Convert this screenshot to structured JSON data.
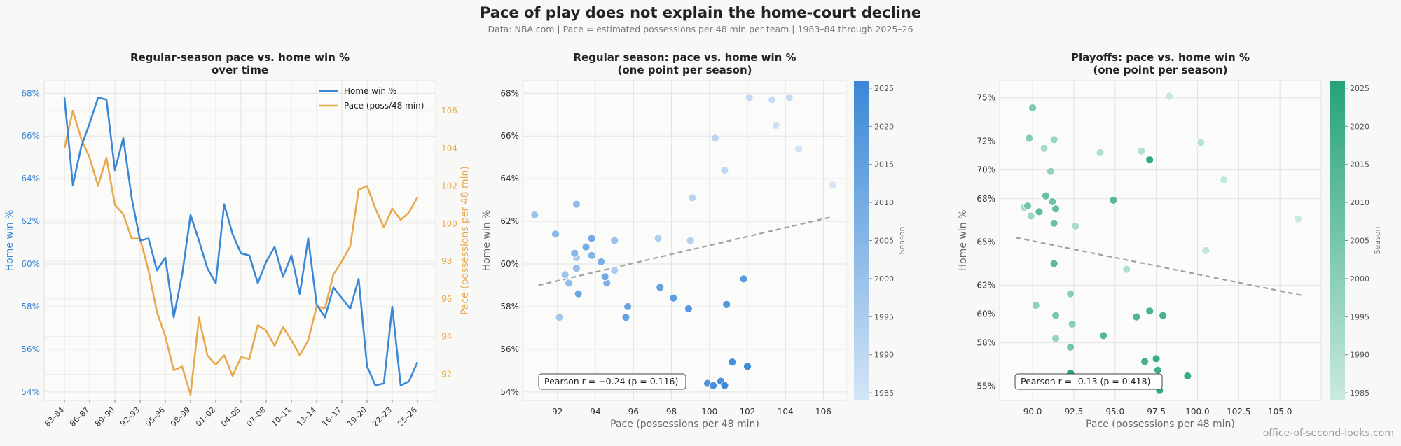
{
  "header": {
    "title": "Pace of play does not explain the home-court decline",
    "subtitle": "Data: NBA.com  |  Pace = estimated possessions per 48 min per team  |  1983–84 through 2025–26",
    "credit": "office-of-second-looks.com"
  },
  "colors": {
    "home": "#3a87d6",
    "pace": "#e8a94e",
    "playoff": "#25a27a",
    "trend": "#a0a0a0"
  },
  "chart_data": [
    {
      "type": "line",
      "title": "Regular-season pace vs. home win %\nover time",
      "ylabel": "Home win %",
      "y2label": "Pace (possessions per 48 min)",
      "ylim": [
        53.6,
        68.6
      ],
      "y2lim": [
        90.6,
        107.6
      ],
      "yticks": [
        "54%",
        "56%",
        "58%",
        "60%",
        "62%",
        "64%",
        "66%",
        "68%"
      ],
      "y2ticks": [
        92,
        94,
        96,
        98,
        100,
        102,
        104,
        106
      ],
      "legend_position": "top-right",
      "grid": true,
      "xticks": [
        "83–84",
        "86–87",
        "89–90",
        "92–93",
        "95–96",
        "98–99",
        "01–02",
        "04–05",
        "07–08",
        "10–11",
        "13–14",
        "16–17",
        "19–20",
        "22–23",
        "25–26"
      ],
      "x": [
        "83–84",
        "84–85",
        "85–86",
        "86–87",
        "87–88",
        "88–89",
        "89–90",
        "90–91",
        "91–92",
        "92–93",
        "93–94",
        "94–95",
        "95–96",
        "96–97",
        "97–98",
        "98–99",
        "99–00",
        "00–01",
        "01–02",
        "02–03",
        "03–04",
        "04–05",
        "05–06",
        "06–07",
        "07–08",
        "08–09",
        "09–10",
        "10–11",
        "11–12",
        "12–13",
        "13–14",
        "14–15",
        "15–16",
        "16–17",
        "17–18",
        "18–19",
        "19–20",
        "20–21",
        "21–22",
        "22–23",
        "23–24",
        "24–25",
        "25–26"
      ],
      "series": [
        {
          "name": "Home win %",
          "axis": "left",
          "values": [
            67.8,
            63.7,
            65.5,
            66.6,
            67.8,
            67.7,
            64.4,
            65.9,
            63.1,
            61.1,
            61.2,
            59.7,
            60.3,
            57.5,
            59.5,
            62.3,
            61.1,
            59.8,
            59.1,
            62.8,
            61.4,
            60.5,
            60.4,
            59.1,
            60.1,
            60.8,
            59.4,
            60.4,
            58.6,
            61.2,
            58.1,
            57.5,
            58.9,
            58.4,
            57.9,
            59.3,
            55.2,
            54.3,
            54.4,
            58.0,
            54.3,
            54.5,
            55.4
          ]
        },
        {
          "name": "Pace (poss/48 min)",
          "axis": "right",
          "values": [
            104.0,
            106.0,
            104.5,
            103.5,
            102.0,
            103.5,
            101.0,
            100.5,
            99.2,
            99.2,
            97.5,
            95.3,
            94.0,
            92.2,
            92.4,
            90.9,
            95.0,
            93.0,
            92.5,
            93.0,
            91.9,
            92.9,
            92.8,
            94.6,
            94.3,
            93.5,
            94.5,
            93.8,
            93.0,
            93.8,
            95.6,
            95.5,
            97.3,
            98.0,
            98.8,
            101.8,
            102.0,
            100.8,
            99.8,
            100.8,
            100.2,
            100.6,
            101.4
          ]
        }
      ]
    },
    {
      "type": "scatter",
      "title": "Regular season: pace vs. home win %\n(one point per season)",
      "xlabel": "Pace (possessions per 48 min)",
      "ylabel": "Home win %",
      "xlim": [
        90.2,
        107.2
      ],
      "ylim": [
        53.6,
        68.6
      ],
      "xticks": [
        92,
        94,
        96,
        98,
        100,
        102,
        104,
        106
      ],
      "yticks": [
        "54%",
        "56%",
        "58%",
        "60%",
        "62%",
        "64%",
        "66%",
        "68%"
      ],
      "colorbar": {
        "label": "Season",
        "ticks": [
          1985,
          1990,
          1995,
          2000,
          2005,
          2010,
          2015,
          2020,
          2025
        ],
        "range": [
          1984,
          2026
        ]
      },
      "grid": true,
      "annotation": "Pearson r = +0.24  (p = 0.116)",
      "trendline": {
        "x": [
          91.0,
          106.4
        ],
        "y": [
          59.0,
          62.2
        ]
      },
      "points": [
        {
          "pace": 106.5,
          "home": 63.7,
          "season": 1984
        },
        {
          "pace": 104.7,
          "home": 65.4,
          "season": 1985
        },
        {
          "pace": 103.5,
          "home": 66.5,
          "season": 1986
        },
        {
          "pace": 103.3,
          "home": 67.7,
          "season": 1987
        },
        {
          "pace": 104.2,
          "home": 67.8,
          "season": 1988
        },
        {
          "pace": 102.1,
          "home": 67.8,
          "season": 1989
        },
        {
          "pace": 100.8,
          "home": 64.4,
          "season": 1990
        },
        {
          "pace": 100.3,
          "home": 65.9,
          "season": 1991
        },
        {
          "pace": 99.1,
          "home": 63.1,
          "season": 1992
        },
        {
          "pace": 99.0,
          "home": 61.1,
          "season": 1993
        },
        {
          "pace": 97.3,
          "home": 61.2,
          "season": 1994
        },
        {
          "pace": 95.0,
          "home": 59.7,
          "season": 1995
        },
        {
          "pace": 93.0,
          "home": 60.3,
          "season": 1996
        },
        {
          "pace": 92.1,
          "home": 57.5,
          "season": 1997
        },
        {
          "pace": 92.4,
          "home": 59.5,
          "season": 1998
        },
        {
          "pace": 90.8,
          "home": 62.3,
          "season": 1999
        },
        {
          "pace": 95.0,
          "home": 61.1,
          "season": 2000
        },
        {
          "pace": 93.0,
          "home": 59.8,
          "season": 2001
        },
        {
          "pace": 92.6,
          "home": 59.1,
          "season": 2002
        },
        {
          "pace": 93.0,
          "home": 62.8,
          "season": 2003
        },
        {
          "pace": 91.9,
          "home": 61.4,
          "season": 2004
        },
        {
          "pace": 92.9,
          "home": 60.5,
          "season": 2005
        },
        {
          "pace": 93.8,
          "home": 60.4,
          "season": 2006
        },
        {
          "pace": 94.6,
          "home": 59.1,
          "season": 2007
        },
        {
          "pace": 94.3,
          "home": 60.1,
          "season": 2008
        },
        {
          "pace": 93.5,
          "home": 60.8,
          "season": 2009
        },
        {
          "pace": 94.5,
          "home": 59.4,
          "season": 2010
        },
        {
          "pace": 93.8,
          "home": 61.2,
          "season": 2011
        },
        {
          "pace": 93.1,
          "home": 58.6,
          "season": 2012
        },
        {
          "pace": 95.7,
          "home": 58.0,
          "season": 2013
        },
        {
          "pace": 95.6,
          "home": 57.5,
          "season": 2014
        },
        {
          "pace": 97.4,
          "home": 58.9,
          "season": 2015
        },
        {
          "pace": 98.1,
          "home": 58.4,
          "season": 2016
        },
        {
          "pace": 98.9,
          "home": 57.9,
          "season": 2017
        },
        {
          "pace": 101.8,
          "home": 59.3,
          "season": 2018
        },
        {
          "pace": 100.9,
          "home": 58.1,
          "season": 2019
        },
        {
          "pace": 99.9,
          "home": 54.4,
          "season": 2020
        },
        {
          "pace": 100.2,
          "home": 54.3,
          "season": 2021
        },
        {
          "pace": 100.6,
          "home": 54.5,
          "season": 2022
        },
        {
          "pace": 101.2,
          "home": 55.4,
          "season": 2023
        },
        {
          "pace": 102.0,
          "home": 55.2,
          "season": 2024
        },
        {
          "pace": 100.8,
          "home": 54.3,
          "season": 2025
        }
      ]
    },
    {
      "type": "scatter",
      "title": "Playoffs: pace vs. home win %\n(one point per season)",
      "xlabel": "Pace (possessions per 48 min)",
      "ylabel": "Home win %",
      "xlim": [
        88.0,
        107.5
      ],
      "ylim": [
        54.0,
        76.2
      ],
      "xticks": [
        "90.0",
        "92.5",
        "95.0",
        "97.5",
        "100.0",
        "102.5",
        "105.0"
      ],
      "yticks": [
        "55%",
        "58%",
        "60%",
        "62%",
        "65%",
        "68%",
        "70%",
        "72%",
        "75%"
      ],
      "colorbar": {
        "label": "Season",
        "ticks": [
          1985,
          1990,
          1995,
          2000,
          2005,
          2010,
          2015,
          2020,
          2025
        ],
        "range": [
          1984,
          2026
        ]
      },
      "grid": true,
      "annotation": "Pearson r = -0.13  (p = 0.418)",
      "trendline": {
        "x": [
          89.0,
          106.3
        ],
        "y": [
          65.3,
          61.3
        ]
      },
      "points": [
        {
          "pace": 106.1,
          "home": 66.6,
          "season": 1984
        },
        {
          "pace": 98.3,
          "home": 75.1,
          "season": 1985
        },
        {
          "pace": 101.6,
          "home": 69.3,
          "season": 1986
        },
        {
          "pace": 100.5,
          "home": 64.4,
          "season": 1987
        },
        {
          "pace": 100.2,
          "home": 71.9,
          "season": 1988
        },
        {
          "pace": 96.6,
          "home": 71.3,
          "season": 1989
        },
        {
          "pace": 95.7,
          "home": 63.1,
          "season": 1990
        },
        {
          "pace": 94.1,
          "home": 71.2,
          "season": 1991
        },
        {
          "pace": 92.6,
          "home": 66.1,
          "season": 1992
        },
        {
          "pace": 90.7,
          "home": 71.5,
          "season": 1993
        },
        {
          "pace": 89.5,
          "home": 67.4,
          "season": 1994
        },
        {
          "pace": 89.9,
          "home": 66.8,
          "season": 1995
        },
        {
          "pace": 91.3,
          "home": 72.1,
          "season": 1996
        },
        {
          "pace": 91.4,
          "home": 58.3,
          "season": 1997
        },
        {
          "pace": 91.1,
          "home": 69.9,
          "season": 1998
        },
        {
          "pace": 90.2,
          "home": 60.6,
          "season": 1999
        },
        {
          "pace": 92.4,
          "home": 59.3,
          "season": 2000
        },
        {
          "pace": 92.3,
          "home": 61.4,
          "season": 2001
        },
        {
          "pace": 89.8,
          "home": 72.2,
          "season": 2002
        },
        {
          "pace": 90.0,
          "home": 74.3,
          "season": 2003
        },
        {
          "pace": 91.4,
          "home": 59.9,
          "season": 2004
        },
        {
          "pace": 92.3,
          "home": 57.7,
          "season": 2005
        },
        {
          "pace": 89.7,
          "home": 67.5,
          "season": 2006
        },
        {
          "pace": 91.2,
          "home": 67.8,
          "season": 2007
        },
        {
          "pace": 91.3,
          "home": 66.3,
          "season": 2008
        },
        {
          "pace": 90.8,
          "home": 68.2,
          "season": 2009
        },
        {
          "pace": 91.4,
          "home": 67.3,
          "season": 2010
        },
        {
          "pace": 90.4,
          "home": 67.1,
          "season": 2011
        },
        {
          "pace": 91.3,
          "home": 63.5,
          "season": 2012
        },
        {
          "pace": 94.9,
          "home": 67.9,
          "season": 2013
        },
        {
          "pace": 94.3,
          "home": 58.5,
          "season": 2014
        },
        {
          "pace": 96.3,
          "home": 59.8,
          "season": 2015
        },
        {
          "pace": 97.1,
          "home": 60.2,
          "season": 2016
        },
        {
          "pace": 97.9,
          "home": 59.9,
          "season": 2017
        },
        {
          "pace": 96.8,
          "home": 56.7,
          "season": 2018
        },
        {
          "pace": 97.6,
          "home": 56.1,
          "season": 2019
        },
        {
          "pace": 97.5,
          "home": 56.9,
          "season": 2020
        },
        {
          "pace": 99.4,
          "home": 55.7,
          "season": 2021
        },
        {
          "pace": 97.7,
          "home": 54.7,
          "season": 2022
        },
        {
          "pace": 97.1,
          "home": 70.7,
          "season": 2023
        },
        {
          "pace": 92.3,
          "home": 55.9,
          "season": 2024
        },
        {
          "pace": 91.3,
          "home": 55.5,
          "season": 2025
        }
      ]
    }
  ]
}
